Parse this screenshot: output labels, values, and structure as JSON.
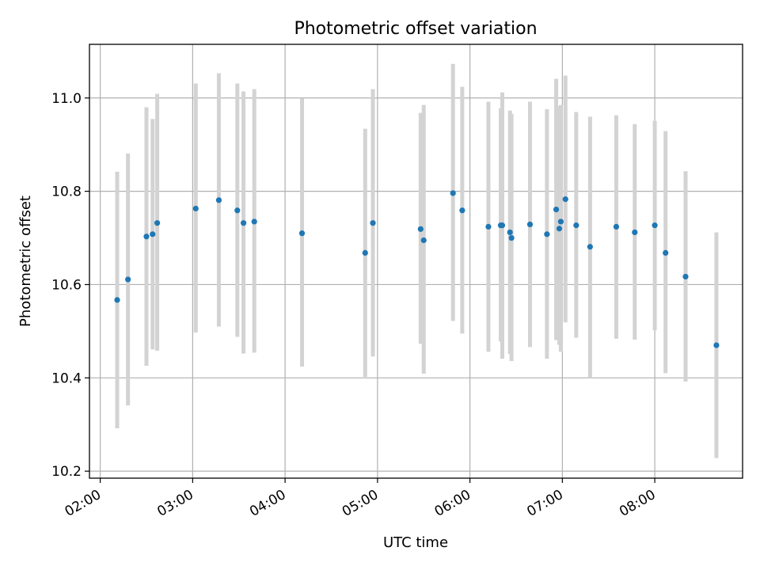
{
  "chart_data": {
    "type": "scatter",
    "title": "Photometric offset variation",
    "xlabel": "UTC time",
    "ylabel": "Photometric offset",
    "xlim": [
      "01:53",
      "08:57"
    ],
    "ylim": [
      10.185,
      11.115
    ],
    "x_ticks": [
      "02:00",
      "03:00",
      "04:00",
      "05:00",
      "06:00",
      "07:00",
      "08:00"
    ],
    "y_ticks": [
      "10.2",
      "10.4",
      "10.6",
      "10.8",
      "11.0"
    ],
    "grid": true,
    "colors": {
      "point": "#1f77b4",
      "errorbar": "#d3d3d3"
    },
    "points": [
      {
        "x": "02:11",
        "y": 10.567,
        "ylow": 10.292,
        "yhigh": 10.842
      },
      {
        "x": "02:18",
        "y": 10.611,
        "ylow": 10.341,
        "yhigh": 10.881
      },
      {
        "x": "02:30",
        "y": 10.703,
        "ylow": 10.426,
        "yhigh": 10.98
      },
      {
        "x": "02:34",
        "y": 10.708,
        "ylow": 10.461,
        "yhigh": 10.955
      },
      {
        "x": "02:37",
        "y": 10.732,
        "ylow": 10.458,
        "yhigh": 11.009
      },
      {
        "x": "03:02",
        "y": 10.763,
        "ylow": 10.497,
        "yhigh": 11.031
      },
      {
        "x": "03:17",
        "y": 10.781,
        "ylow": 10.51,
        "yhigh": 11.053
      },
      {
        "x": "03:29",
        "y": 10.759,
        "ylow": 10.488,
        "yhigh": 11.031
      },
      {
        "x": "03:33",
        "y": 10.732,
        "ylow": 10.452,
        "yhigh": 11.014
      },
      {
        "x": "03:40",
        "y": 10.735,
        "ylow": 10.454,
        "yhigh": 11.019
      },
      {
        "x": "04:11",
        "y": 10.71,
        "ylow": 10.424,
        "yhigh": 10.999
      },
      {
        "x": "04:52",
        "y": 10.668,
        "ylow": 10.402,
        "yhigh": 10.934
      },
      {
        "x": "04:57",
        "y": 10.732,
        "ylow": 10.446,
        "yhigh": 11.019
      },
      {
        "x": "05:28",
        "y": 10.719,
        "ylow": 10.473,
        "yhigh": 10.968
      },
      {
        "x": "05:30",
        "y": 10.695,
        "ylow": 10.409,
        "yhigh": 10.985
      },
      {
        "x": "05:49",
        "y": 10.796,
        "ylow": 10.522,
        "yhigh": 11.073
      },
      {
        "x": "05:55",
        "y": 10.759,
        "ylow": 10.495,
        "yhigh": 11.024
      },
      {
        "x": "06:12",
        "y": 10.724,
        "ylow": 10.456,
        "yhigh": 10.992
      },
      {
        "x": "06:20",
        "y": 10.727,
        "ylow": 10.478,
        "yhigh": 10.978
      },
      {
        "x": "06:21",
        "y": 10.727,
        "ylow": 10.441,
        "yhigh": 11.012
      },
      {
        "x": "06:26",
        "y": 10.712,
        "ylow": 10.451,
        "yhigh": 10.973
      },
      {
        "x": "06:27",
        "y": 10.7,
        "ylow": 10.436,
        "yhigh": 10.966
      },
      {
        "x": "06:39",
        "y": 10.729,
        "ylow": 10.466,
        "yhigh": 10.992
      },
      {
        "x": "06:50",
        "y": 10.708,
        "ylow": 10.441,
        "yhigh": 10.976
      },
      {
        "x": "06:56",
        "y": 10.761,
        "ylow": 10.481,
        "yhigh": 11.041
      },
      {
        "x": "06:58",
        "y": 10.72,
        "ylow": 10.471,
        "yhigh": 10.982
      },
      {
        "x": "06:59",
        "y": 10.735,
        "ylow": 10.456,
        "yhigh": 10.985
      },
      {
        "x": "07:02",
        "y": 10.783,
        "ylow": 10.519,
        "yhigh": 11.048
      },
      {
        "x": "07:09",
        "y": 10.727,
        "ylow": 10.486,
        "yhigh": 10.97
      },
      {
        "x": "07:18",
        "y": 10.681,
        "ylow": 10.4,
        "yhigh": 10.96
      },
      {
        "x": "07:35",
        "y": 10.724,
        "ylow": 10.484,
        "yhigh": 10.963
      },
      {
        "x": "07:47",
        "y": 10.712,
        "ylow": 10.482,
        "yhigh": 10.944
      },
      {
        "x": "08:00",
        "y": 10.727,
        "ylow": 10.502,
        "yhigh": 10.951
      },
      {
        "x": "08:07",
        "y": 10.668,
        "ylow": 10.41,
        "yhigh": 10.929
      },
      {
        "x": "08:20",
        "y": 10.617,
        "ylow": 10.392,
        "yhigh": 10.843
      },
      {
        "x": "08:40",
        "y": 10.47,
        "ylow": 10.228,
        "yhigh": 10.712
      }
    ]
  }
}
